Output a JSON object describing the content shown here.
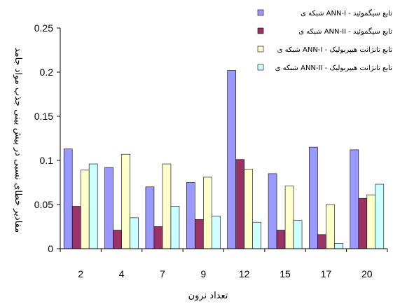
{
  "chart_data": {
    "type": "bar",
    "categories": [
      "2",
      "4",
      "7",
      "9",
      "12",
      "15",
      "17",
      "20"
    ],
    "series": [
      {
        "name": "شبکه ی ANN-I - تابع سیگموئید",
        "color": "#9999ff",
        "values": [
          0.113,
          0.092,
          0.07,
          0.075,
          0.202,
          0.085,
          0.115,
          0.112
        ]
      },
      {
        "name": "شبکه ی ANN-II - تابع سیگموئید",
        "color": "#993366",
        "values": [
          0.048,
          0.021,
          0.025,
          0.033,
          0.101,
          0.021,
          0.016,
          0.057
        ]
      },
      {
        "name": "شبکه ی ANN-I - تابع تانژانت هیپربولیک",
        "color": "#ffffcc",
        "values": [
          0.089,
          0.107,
          0.096,
          0.081,
          0.09,
          0.071,
          0.05,
          0.061
        ]
      },
      {
        "name": "شبکه ی ANN-II - تابع تانژانت هیپربولیک",
        "color": "#ccffff",
        "values": [
          0.096,
          0.035,
          0.048,
          0.037,
          0.03,
          0.032,
          0.006,
          0.073
        ]
      }
    ],
    "xlabel": "تعداد نرون",
    "ylabel": "مقادیر خطای نسبی در پیش بینی جذب مواد جامد",
    "ylim": [
      0,
      0.25
    ],
    "yticks": [
      "0",
      "0.05",
      "0.1",
      "0.15",
      "0.2",
      "0.25"
    ],
    "ytick_values": [
      0,
      0.05,
      0.1,
      0.15,
      0.2,
      0.25
    ],
    "grid": false,
    "legend_position": "top-right"
  }
}
